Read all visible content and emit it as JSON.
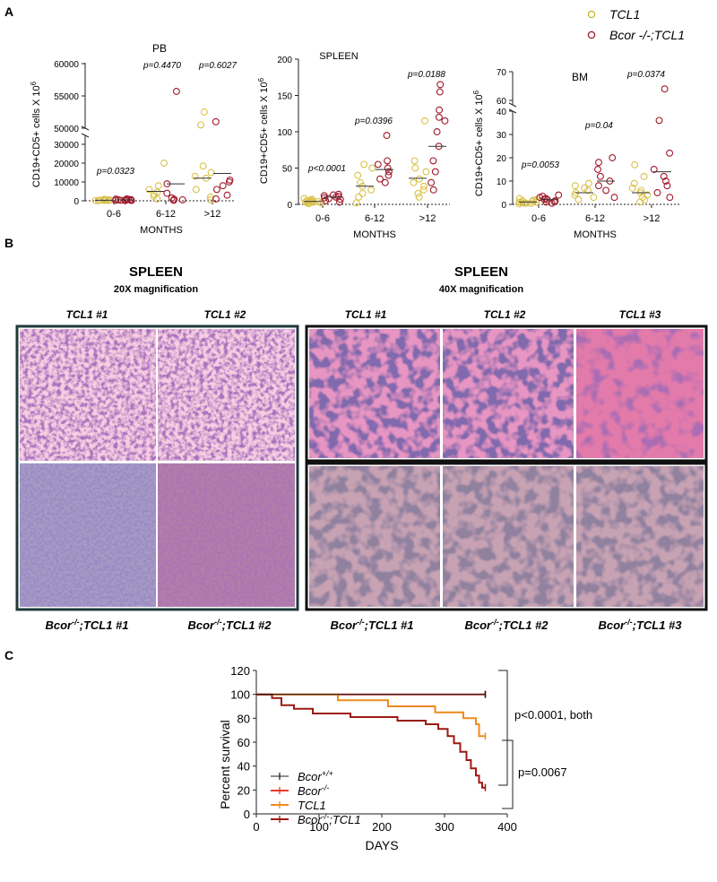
{
  "panels": {
    "a": {
      "label": "A"
    },
    "b": {
      "label": "B"
    },
    "c": {
      "label": "C"
    }
  },
  "legend_top": {
    "items": [
      {
        "name": "TCL1",
        "color": "#c8b42a"
      },
      {
        "name": "Bcor -/-;TCL1",
        "color": "#a0182a"
      }
    ]
  },
  "scatter_common": {
    "ylabel": "CD19+CD5+ cells X 10",
    "ylabel_sup": "6",
    "xlabel": "MONTHS",
    "groups": [
      "0-6",
      "6-12",
      ">12"
    ]
  },
  "panel_b": {
    "left_title": "SPLEEN",
    "left_subtitle": "20X magnification",
    "right_title": "SPLEEN",
    "right_subtitle": "40X magnification",
    "left_top_labels": [
      "TCL1 #1",
      "TCL1 #2"
    ],
    "right_top_labels": [
      "TCL1 #1",
      "TCL1 #2",
      "TCL1 #3"
    ],
    "left_bottom_labels": [
      {
        "pre": "Bcor",
        "sup": "-/-",
        "post": ";TCL1 #1"
      },
      {
        "pre": "Bcor",
        "sup": "-/-",
        "post": ";TCL1 #2"
      }
    ],
    "right_bottom_labels": [
      {
        "pre": "Bcor",
        "sup": "-/-",
        "post": ";TCL1 #1"
      },
      {
        "pre": "Bcor",
        "sup": "-/-",
        "post": ";TCL1 #2"
      },
      {
        "pre": "Bcor",
        "sup": "-/-",
        "post": ";TCL1 #3"
      }
    ]
  },
  "chart_data": [
    {
      "type": "scatter",
      "title": "PB",
      "ylabel": "CD19+CD5+ cells X 10^6",
      "xlabel": "MONTHS",
      "categories": [
        "0-6",
        "6-12",
        ">12"
      ],
      "y_axis_broken": true,
      "y_ticks": [
        "0",
        "10000",
        "20000",
        "30000",
        "50000",
        "55000",
        "60000"
      ],
      "pvalues": [
        "p=0.0323",
        "p=0.4470",
        "p=0.6027"
      ],
      "series": [
        {
          "name": "TCL1",
          "color": "#d9c24a",
          "points": [
            {
              "group": "0-6",
              "values": [
                50,
                120,
                200,
                300,
                350,
                420,
                500,
                600,
                700,
                800,
                150,
                250,
                400
              ]
            },
            {
              "group": "6-12",
              "values": [
                1000,
                2500,
                3500,
                4500,
                6000,
                8000,
                20000
              ]
            },
            {
              "group": ">12",
              "values": [
                500,
                2000,
                6000,
                12000,
                13000,
                15000,
                18500,
                50500,
                52500
              ]
            }
          ],
          "means": [
            300,
            5000,
            12000
          ]
        },
        {
          "name": "Bcor -/-;TCL1",
          "color": "#a0182a",
          "points": [
            {
              "group": "0-6",
              "values": [
                100,
                200,
                300,
                400,
                500,
                600,
                700,
                800,
                900,
                1000,
                150,
                350
              ]
            },
            {
              "group": "6-12",
              "values": [
                200,
                500,
                800,
                1500,
                4000,
                9000,
                55700
              ]
            },
            {
              "group": ">12",
              "values": [
                1000,
                3000,
                6000,
                8000,
                10000,
                11000,
                51000
              ]
            }
          ],
          "means": [
            500,
            9000,
            14500
          ]
        }
      ]
    },
    {
      "type": "scatter",
      "title": "SPLEEN",
      "ylabel": "CD19+CD5+ cells X 10^6",
      "xlabel": "MONTHS",
      "categories": [
        "0-6",
        "6-12",
        ">12"
      ],
      "y_ticks": [
        "0",
        "50",
        "100",
        "150",
        "200"
      ],
      "ylim": [
        0,
        200
      ],
      "pvalues": [
        "p<0.0001",
        "p=0.0396",
        "p=0.0188"
      ],
      "series": [
        {
          "name": "TCL1",
          "color": "#d9c24a",
          "points": [
            {
              "group": "0-6",
              "values": [
                1,
                2,
                3,
                3,
                4,
                4,
                5,
                5,
                6,
                7,
                8,
                2,
                3
              ]
            },
            {
              "group": "6-12",
              "values": [
                2,
                10,
                15,
                20,
                25,
                30,
                40,
                50,
                55
              ]
            },
            {
              "group": ">12",
              "values": [
                10,
                15,
                20,
                25,
                30,
                35,
                45,
                50,
                60,
                115
              ]
            }
          ],
          "means": [
            4,
            25,
            36
          ]
        },
        {
          "name": "Bcor -/-;TCL1",
          "color": "#a0182a",
          "points": [
            {
              "group": "0-6",
              "values": [
                3,
                5,
                7,
                8,
                9,
                10,
                11,
                12,
                13,
                14
              ]
            },
            {
              "group": "6-12",
              "values": [
                30,
                35,
                40,
                45,
                50,
                55,
                60,
                95
              ]
            },
            {
              "group": ">12",
              "values": [
                20,
                30,
                45,
                60,
                80,
                100,
                115,
                120,
                130,
                155,
                165
              ]
            }
          ],
          "means": [
            10,
            48,
            80
          ]
        }
      ]
    },
    {
      "type": "scatter",
      "title": "BM",
      "ylabel": "CD19+CD5+ cells X 10^6",
      "xlabel": "MONTHS",
      "categories": [
        "0-6",
        "6-12",
        ">12"
      ],
      "y_axis_broken": true,
      "y_ticks": [
        "0",
        "10",
        "20",
        "30",
        "40",
        "60",
        "70"
      ],
      "pvalues": [
        "p=0.0053",
        "p=0.04",
        "p=0.0374"
      ],
      "series": [
        {
          "name": "TCL1",
          "color": "#d9c24a",
          "points": [
            {
              "group": "0-6",
              "values": [
                0.2,
                0.4,
                0.6,
                0.8,
                1,
                1.2,
                1.5,
                1.8,
                2,
                2.5,
                0.5,
                1
              ]
            },
            {
              "group": "6-12",
              "values": [
                2,
                3,
                4,
                5,
                6,
                7,
                8,
                9
              ]
            },
            {
              "group": ">12",
              "values": [
                1,
                2,
                3,
                4,
                5,
                6,
                7,
                9,
                12,
                17
              ]
            }
          ],
          "means": [
            1,
            5,
            5
          ]
        },
        {
          "name": "Bcor -/-;TCL1",
          "color": "#a0182a",
          "points": [
            {
              "group": "0-6",
              "values": [
                0.5,
                1,
                1.5,
                2,
                2.5,
                3,
                3.5,
                4,
                1.2,
                2.2
              ]
            },
            {
              "group": "6-12",
              "values": [
                3,
                6,
                8,
                10,
                12,
                15,
                18,
                20
              ]
            },
            {
              "group": ">12",
              "values": [
                3,
                5,
                8,
                10,
                12,
                15,
                22,
                36,
                64
              ]
            }
          ],
          "means": [
            2,
            10,
            14
          ]
        }
      ]
    },
    {
      "type": "line",
      "subtype": "kaplan-meier",
      "ylabel": "Percent survival",
      "xlabel": "DAYS",
      "xlim": [
        0,
        400
      ],
      "ylim": [
        0,
        120
      ],
      "x_ticks": [
        "0",
        "100",
        "200",
        "300",
        "400"
      ],
      "y_ticks": [
        "0",
        "20",
        "40",
        "60",
        "80",
        "100",
        "120"
      ],
      "annotations": [
        "p<0.0001, both",
        "p=0.0067"
      ],
      "series": [
        {
          "name": "Bcor +/+",
          "pre": "Bcor",
          "sup": "+/+",
          "post": "",
          "color": "#222222",
          "points": [
            [
              0,
              100
            ],
            [
              365,
              100
            ]
          ]
        },
        {
          "name": "Bcor -/-",
          "pre": "Bcor",
          "sup": "-/-",
          "post": "",
          "color": "#e8382b",
          "points": [
            [
              0,
              100
            ],
            [
              365,
              100
            ]
          ]
        },
        {
          "name": "TCL1",
          "pre": "TCL1",
          "sup": "",
          "post": "",
          "color": "#f08a1c",
          "points": [
            [
              0,
              100
            ],
            [
              130,
              100
            ],
            [
              130,
              95
            ],
            [
              210,
              95
            ],
            [
              210,
              90
            ],
            [
              285,
              90
            ],
            [
              285,
              85
            ],
            [
              330,
              85
            ],
            [
              330,
              80
            ],
            [
              350,
              80
            ],
            [
              350,
              75
            ],
            [
              355,
              75
            ],
            [
              355,
              65
            ],
            [
              365,
              65
            ]
          ]
        },
        {
          "name": "Bcor -/-;TCL1",
          "pre": "Bcor",
          "sup": "-/-",
          "post": ";TCL1",
          "color": "#9c1a14",
          "points": [
            [
              0,
              100
            ],
            [
              25,
              100
            ],
            [
              25,
              97
            ],
            [
              40,
              97
            ],
            [
              40,
              91
            ],
            [
              60,
              91
            ],
            [
              60,
              88
            ],
            [
              90,
              88
            ],
            [
              90,
              84
            ],
            [
              150,
              84
            ],
            [
              150,
              81
            ],
            [
              225,
              81
            ],
            [
              225,
              78
            ],
            [
              270,
              78
            ],
            [
              270,
              75
            ],
            [
              290,
              75
            ],
            [
              290,
              71
            ],
            [
              305,
              71
            ],
            [
              305,
              65
            ],
            [
              315,
              65
            ],
            [
              315,
              59
            ],
            [
              325,
              59
            ],
            [
              325,
              52
            ],
            [
              335,
              52
            ],
            [
              335,
              45
            ],
            [
              342,
              45
            ],
            [
              342,
              38
            ],
            [
              350,
              38
            ],
            [
              350,
              32
            ],
            [
              355,
              32
            ],
            [
              355,
              26
            ],
            [
              360,
              26
            ],
            [
              360,
              22
            ],
            [
              365,
              22
            ]
          ]
        }
      ]
    }
  ]
}
